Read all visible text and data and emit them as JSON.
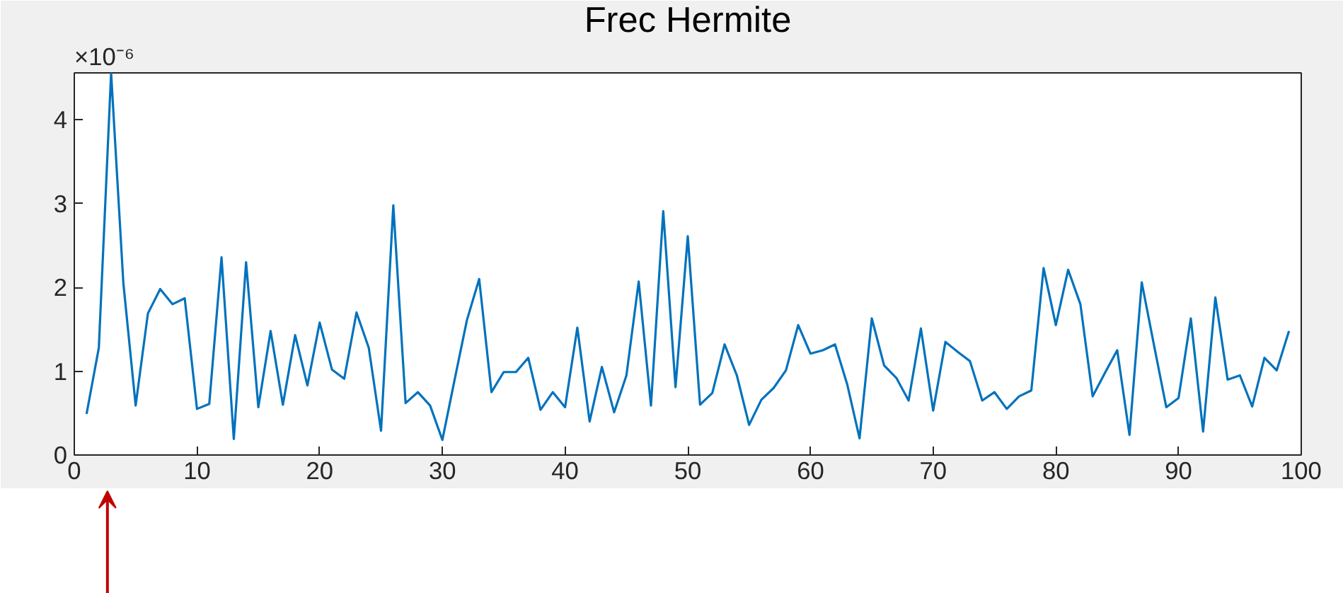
{
  "chart_data": {
    "type": "line",
    "title": "Frec Hermite",
    "annotations": [
      "×10⁻⁶"
    ],
    "x": [
      1,
      2,
      3,
      4,
      5,
      6,
      7,
      8,
      9,
      10,
      11,
      12,
      13,
      14,
      15,
      16,
      17,
      18,
      19,
      20,
      21,
      22,
      23,
      24,
      25,
      26,
      27,
      28,
      29,
      30,
      31,
      32,
      33,
      34,
      35,
      36,
      37,
      38,
      39,
      40,
      41,
      42,
      43,
      44,
      45,
      46,
      47,
      48,
      49,
      50,
      51,
      52,
      53,
      54,
      55,
      56,
      57,
      58,
      59,
      60,
      61,
      62,
      63,
      64,
      65,
      66,
      67,
      68,
      69,
      70,
      71,
      72,
      73,
      74,
      75,
      76,
      77,
      78,
      79,
      80,
      81,
      82,
      83,
      84,
      85,
      86,
      87,
      88,
      89,
      90,
      91,
      92,
      93,
      94,
      95,
      96,
      97,
      98,
      99
    ],
    "series": [
      {
        "color": "#0072bd",
        "values": [
          0.49,
          1.28,
          4.56,
          2.05,
          0.59,
          1.69,
          1.98,
          1.8,
          1.87,
          0.55,
          0.61,
          2.36,
          0.19,
          2.3,
          0.57,
          1.48,
          0.6,
          1.43,
          0.83,
          1.58,
          1.02,
          0.91,
          1.7,
          1.28,
          0.29,
          2.98,
          0.62,
          0.75,
          0.59,
          0.18,
          0.9,
          1.61,
          2.1,
          0.75,
          0.99,
          0.99,
          1.16,
          0.54,
          0.75,
          0.57,
          1.52,
          0.4,
          1.05,
          0.51,
          0.95,
          2.07,
          0.59,
          2.91,
          0.81,
          2.61,
          0.6,
          0.74,
          1.32,
          0.95,
          0.36,
          0.66,
          0.8,
          1.01,
          1.55,
          1.21,
          1.25,
          1.32,
          0.84,
          0.2,
          1.63,
          1.07,
          0.92,
          0.65,
          1.51,
          0.53,
          1.35,
          1.23,
          1.12,
          0.65,
          0.75,
          0.55,
          0.7,
          0.77,
          2.23,
          1.55,
          2.21,
          1.8,
          0.7,
          0.98,
          1.25,
          0.24,
          2.06,
          1.31,
          0.57,
          0.68,
          1.63,
          0.28,
          1.88,
          0.9,
          0.95,
          0.58,
          1.16,
          1.01,
          1.48
        ]
      }
    ],
    "xlim": [
      0,
      100
    ],
    "ylim": [
      0,
      4.56
    ],
    "xticks": [
      0,
      10,
      20,
      30,
      40,
      50,
      60,
      70,
      80,
      90,
      100
    ],
    "yticks": [
      0,
      1,
      2,
      3,
      4
    ],
    "grid": false,
    "marker": "none",
    "line_style": "solid"
  }
}
